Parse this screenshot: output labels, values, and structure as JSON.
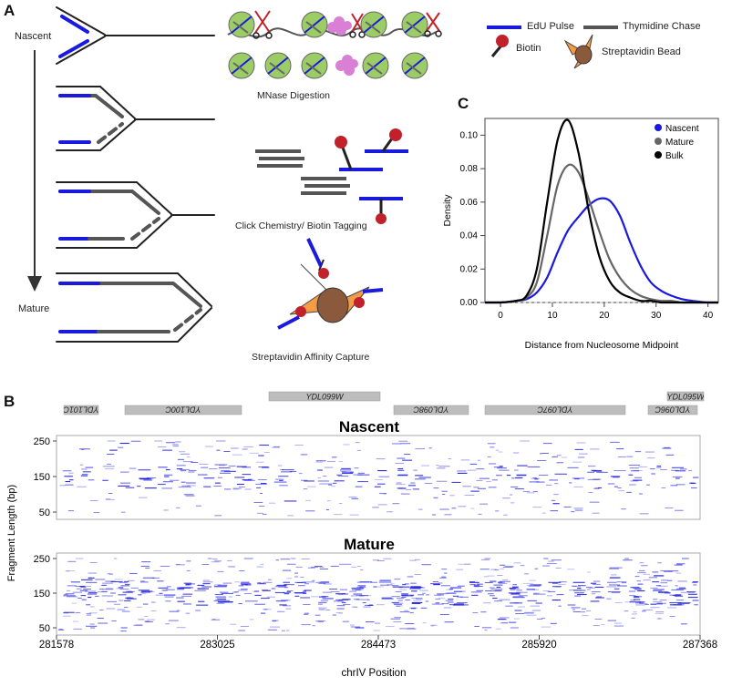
{
  "panelA": {
    "letter": "A",
    "label_nascent": "Nascent",
    "label_mature": "Mature",
    "caption_mnase": "MNase Digestion",
    "caption_click": "Click Chemistry/ Biotin Tagging",
    "caption_strep": "Streptavidin Affinity Capture",
    "legend": {
      "edu": "EdU Pulse",
      "thymidine": "Thymidine Chase",
      "biotin": "Biotin",
      "bead": "Streptavidin Bead"
    },
    "colors": {
      "edu": "#1a1adf",
      "thymidine": "#555555",
      "biotin": "#c0212a",
      "bead": "#8b5a3c",
      "streptavidin": "#f39b45",
      "nucleosome": "#9ccc65",
      "mnase": "#d97fd6"
    }
  },
  "panelB": {
    "letter": "B",
    "genes": [
      {
        "name": "YDL101C"
      },
      {
        "name": "YDL100C"
      },
      {
        "name": "YDL099W"
      },
      {
        "name": "YDL098C"
      },
      {
        "name": "YDL097C"
      },
      {
        "name": "YDL096C"
      },
      {
        "name": "YDL095W"
      }
    ],
    "track_nascent_title": "Nascent",
    "track_mature_title": "Mature",
    "ylabel": "Fragment Length (bp)",
    "xlabel": "chrIV Position",
    "y_ticks": [
      "250",
      "150",
      "50"
    ],
    "x_ticks": [
      "281578",
      "283025",
      "284473",
      "285920",
      "287368"
    ]
  },
  "chart_data": {
    "type": "line",
    "panel_letter": "C",
    "xlabel": "Distance from Nucleosome Midpoint",
    "ylabel": "Density",
    "xlim": [
      -3,
      42
    ],
    "ylim": [
      0,
      0.11
    ],
    "x_ticks": [
      "0",
      "10",
      "20",
      "30",
      "40"
    ],
    "y_ticks": [
      "0.00",
      "0.02",
      "0.04",
      "0.06",
      "0.08",
      "0.10"
    ],
    "legend_position": "top-right",
    "x": [
      -3,
      0,
      3,
      5,
      7,
      9,
      11,
      13,
      15,
      17,
      19,
      21,
      23,
      25,
      27,
      29,
      31,
      33,
      35,
      37,
      40,
      42
    ],
    "series": [
      {
        "name": "Nascent",
        "color": "#1a1adf",
        "values": [
          0,
          0,
          0.001,
          0.002,
          0.006,
          0.015,
          0.03,
          0.043,
          0.051,
          0.058,
          0.062,
          0.061,
          0.052,
          0.036,
          0.022,
          0.012,
          0.007,
          0.004,
          0.002,
          0.001,
          0,
          0
        ]
      },
      {
        "name": "Mature",
        "color": "#666666",
        "values": [
          0,
          0,
          0.001,
          0.003,
          0.012,
          0.04,
          0.07,
          0.082,
          0.078,
          0.062,
          0.043,
          0.026,
          0.015,
          0.008,
          0.004,
          0.002,
          0.001,
          0.001,
          0,
          0,
          0,
          0
        ]
      },
      {
        "name": "Bulk",
        "color": "#000000",
        "values": [
          0,
          0,
          0.001,
          0.004,
          0.02,
          0.06,
          0.097,
          0.109,
          0.09,
          0.055,
          0.028,
          0.013,
          0.006,
          0.003,
          0.001,
          0.001,
          0,
          0,
          0,
          0,
          0,
          0
        ]
      }
    ]
  }
}
